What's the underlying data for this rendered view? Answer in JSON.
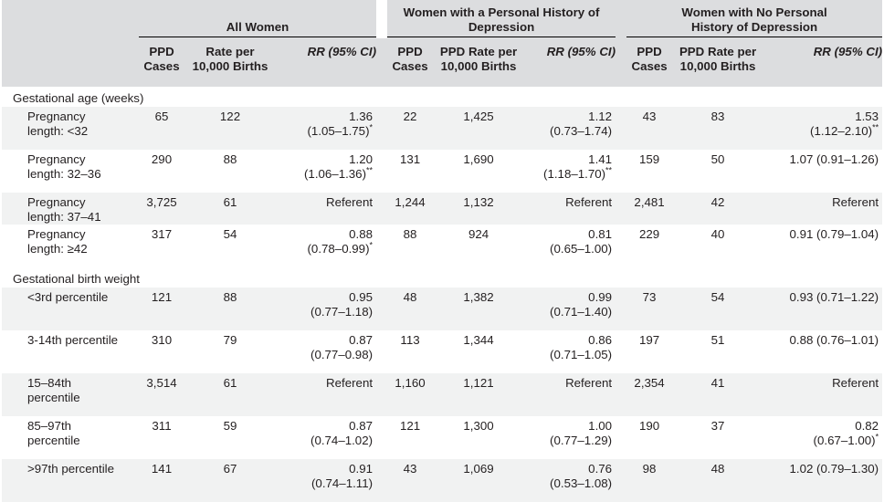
{
  "groups": [
    {
      "title": "All Women"
    },
    {
      "title_line1": "Women with a Personal History of",
      "title_line2": "Depression"
    },
    {
      "title_line1": "Women with No Personal",
      "title_line2": "History of Depression"
    }
  ],
  "subheaders": {
    "all": {
      "cases_l1": "PPD",
      "cases_l2": "Cases",
      "rate_l1": "Rate per",
      "rate_l2": "10,000 Births",
      "rr": "RR (95% CI)"
    },
    "hist": {
      "cases_l1": "PPD",
      "cases_l2": "Cases",
      "rate_l1": "PPD Rate per",
      "rate_l2": "10,000 Births",
      "rr": "RR (95% CI)"
    },
    "nohist": {
      "cases_l1": "PPD",
      "cases_l2": "Cases",
      "rate_l1": "PPD Rate per",
      "rate_l2": "10,000 Births",
      "rr": "RR (95% CI)"
    }
  },
  "sections": {
    "gest_age": "Gestational age (weeks)",
    "gest_weight": "Gestational birth weight"
  },
  "rows": [
    {
      "l1": "Pregnancy",
      "l2": "length: <32",
      "a_cases": "65",
      "a_rate": "122",
      "a_rr1": "1.36",
      "a_rr2": "(1.05–1.75)",
      "a_sig": "*",
      "h_cases": "22",
      "h_rate": "1,425",
      "h_rr1": "1.12",
      "h_rr2": "(0.73–1.74)",
      "h_sig": "",
      "n_cases": "43",
      "n_rate": "83",
      "n_rr1": "1.53",
      "n_rr2": "(1.12–2.10)",
      "n_sig": "**"
    },
    {
      "l1": "Pregnancy",
      "l2": "length: 32–36",
      "a_cases": "290",
      "a_rate": "88",
      "a_rr1": "1.20",
      "a_rr2": "(1.06–1.36)",
      "a_sig": "**",
      "h_cases": "131",
      "h_rate": "1,690",
      "h_rr1": "1.41",
      "h_rr2": "(1.18–1.70)",
      "h_sig": "**",
      "n_cases": "159",
      "n_rate": "50",
      "n_rr1": "1.07 (0.91–1.26)",
      "n_rr2": "",
      "n_sig": ""
    },
    {
      "l1": "Pregnancy",
      "l2": "length: 37–41",
      "a_cases": "3,725",
      "a_rate": "61",
      "a_rr1": "Referent",
      "a_rr2": "",
      "a_sig": "",
      "h_cases": "1,244",
      "h_rate": "1,132",
      "h_rr1": "Referent",
      "h_rr2": "",
      "h_sig": "",
      "n_cases": "2,481",
      "n_rate": "42",
      "n_rr1": "Referent",
      "n_rr2": "",
      "n_sig": ""
    },
    {
      "l1": "Pregnancy",
      "l2": "length: ≥42",
      "a_cases": "317",
      "a_rate": "54",
      "a_rr1": "0.88",
      "a_rr2": "(0.78–0.99)",
      "a_sig": "*",
      "h_cases": "88",
      "h_rate": "924",
      "h_rr1": "0.81",
      "h_rr2": "(0.65–1.00)",
      "h_sig": "",
      "n_cases": "229",
      "n_rate": "40",
      "n_rr1": "0.91 (0.79–1.04)",
      "n_rr2": "",
      "n_sig": ""
    },
    {
      "l1": "<3rd percentile",
      "l2": "",
      "a_cases": "121",
      "a_rate": "88",
      "a_rr1": "0.95",
      "a_rr2": "(0.77–1.18)",
      "a_sig": "",
      "h_cases": "48",
      "h_rate": "1,382",
      "h_rr1": "0.99",
      "h_rr2": "(0.71–1.40)",
      "h_sig": "",
      "n_cases": "73",
      "n_rate": "54",
      "n_rr1": "0.93 (0.71–1.22)",
      "n_rr2": "",
      "n_sig": ""
    },
    {
      "l1": "3-14th percentile",
      "l2": "",
      "a_cases": "310",
      "a_rate": "79",
      "a_rr1": "0.87",
      "a_rr2": "(0.77–0.98)",
      "a_sig": "",
      "h_cases": "113",
      "h_rate": "1,344",
      "h_rr1": "0.86",
      "h_rr2": "(0.71–1.05)",
      "h_sig": "",
      "n_cases": "197",
      "n_rate": "51",
      "n_rr1": "0.88 (0.76–1.01)",
      "n_rr2": "",
      "n_sig": ""
    },
    {
      "l1": "15–84th",
      "l2": "percentile",
      "a_cases": "3,514",
      "a_rate": "61",
      "a_rr1": "Referent",
      "a_rr2": "",
      "a_sig": "",
      "h_cases": "1,160",
      "h_rate": "1,121",
      "h_rr1": "Referent",
      "h_rr2": "",
      "h_sig": "",
      "n_cases": "2,354",
      "n_rate": "41",
      "n_rr1": "Referent",
      "n_rr2": "",
      "n_sig": ""
    },
    {
      "l1": "85–97th",
      "l2": "percentile",
      "a_cases": "311",
      "a_rate": "59",
      "a_rr1": "0.87",
      "a_rr2": "(0.74–1.02)",
      "a_sig": "",
      "h_cases": "121",
      "h_rate": "1,300",
      "h_rr1": "1.00",
      "h_rr2": "(0.77–1.29)",
      "h_sig": "",
      "n_cases": "190",
      "n_rate": "37",
      "n_rr1": "0.82",
      "n_rr2": "(0.67–1.00)",
      "n_sig": "*"
    },
    {
      "l1": ">97th percentile",
      "l2": "",
      "a_cases": "141",
      "a_rate": "67",
      "a_rr1": "0.91",
      "a_rr2": "(0.74–1.11)",
      "a_sig": "",
      "h_cases": "43",
      "h_rate": "1,069",
      "h_rr1": "0.76",
      "h_rr2": "(0.53–1.08)",
      "h_sig": "",
      "n_cases": "98",
      "n_rate": "48",
      "n_rr1": "1.02 (0.79–1.30)",
      "n_rr2": "",
      "n_sig": ""
    }
  ]
}
